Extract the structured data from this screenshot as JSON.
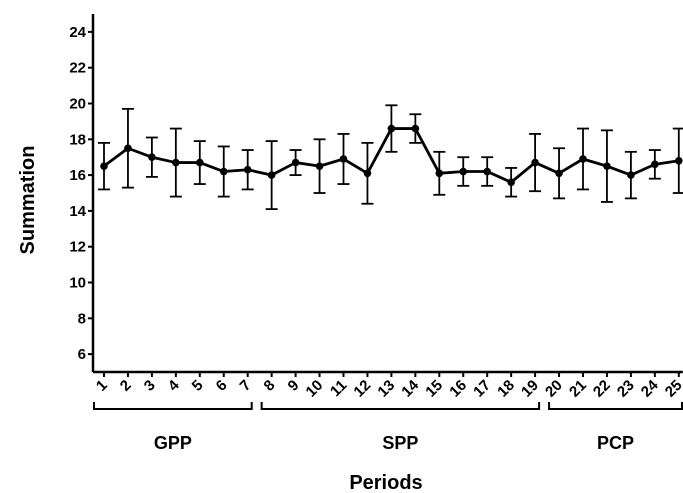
{
  "chart_data": {
    "type": "line",
    "ylabel": "Summation",
    "xlabel": "Periods",
    "ylim": [
      5,
      25
    ],
    "yticks": [
      6,
      8,
      10,
      12,
      14,
      16,
      18,
      20,
      22,
      24
    ],
    "grid": false,
    "legend": "none",
    "line_color": "#000000",
    "x": [
      "1",
      "2",
      "3",
      "4",
      "5",
      "6",
      "7",
      "8",
      "9",
      "10",
      "11",
      "12",
      "13",
      "14",
      "15",
      "16",
      "17",
      "18",
      "19",
      "20",
      "21",
      "22",
      "23",
      "24",
      "25"
    ],
    "series": [
      {
        "values": [
          16.5,
          17.5,
          17.0,
          16.7,
          16.7,
          16.2,
          16.3,
          16.0,
          16.7,
          16.5,
          16.9,
          16.1,
          18.6,
          18.6,
          16.1,
          16.2,
          16.2,
          15.6,
          16.7,
          16.1,
          16.9,
          16.5,
          16.0,
          16.6,
          16.8
        ],
        "error": [
          1.3,
          2.2,
          1.1,
          1.9,
          1.2,
          1.4,
          1.1,
          1.9,
          0.7,
          1.5,
          1.4,
          1.7,
          1.3,
          0.8,
          1.2,
          0.8,
          0.8,
          0.8,
          1.6,
          1.4,
          1.7,
          2.0,
          1.3,
          0.8,
          1.8
        ]
      }
    ],
    "groups": [
      {
        "label": "GPP",
        "start": 1,
        "end": 7
      },
      {
        "label": "SPP",
        "start": 8,
        "end": 19
      },
      {
        "label": "PCP",
        "start": 20,
        "end": 25
      }
    ]
  }
}
